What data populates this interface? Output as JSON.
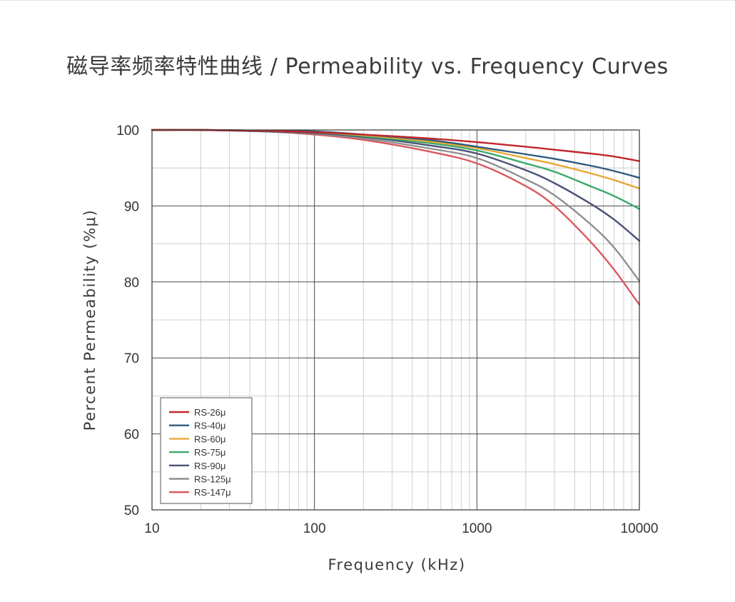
{
  "chart_data": {
    "type": "line",
    "title": "磁导率频率特性曲线 / Permeability vs. Frequency Curves",
    "xlabel": "Frequency (kHz)",
    "ylabel": "Percent Permeability (%μ)",
    "xscale": "log",
    "xlim": [
      10,
      10000
    ],
    "ylim": [
      50,
      100
    ],
    "x_ticks": [
      "10",
      "100",
      "1000",
      "10000"
    ],
    "y_ticks": [
      "50",
      "60",
      "70",
      "80",
      "90",
      "100"
    ],
    "grid": true,
    "legend_position": "bottom-left",
    "x": [
      10,
      20,
      50,
      100,
      200,
      500,
      1000,
      2000,
      3000,
      5000,
      7000,
      10000
    ],
    "series": [
      {
        "name": "RS-26μ",
        "color": "#c0282d",
        "values": [
          100,
          100,
          99.9,
          99.7,
          99.4,
          98.9,
          98.4,
          97.8,
          97.4,
          96.9,
          96.5,
          95.9
        ]
      },
      {
        "name": "RS-40μ",
        "color": "#2e5b7f",
        "values": [
          100,
          100,
          99.9,
          99.8,
          99.4,
          98.7,
          97.8,
          96.8,
          96.2,
          95.3,
          94.6,
          93.7
        ]
      },
      {
        "name": "RS-60μ",
        "color": "#e8a838",
        "values": [
          100,
          100,
          99.9,
          99.7,
          99.3,
          98.5,
          97.6,
          96.3,
          95.5,
          94.3,
          93.4,
          92.3
        ]
      },
      {
        "name": "RS-75μ",
        "color": "#3aaa6a",
        "values": [
          100,
          100,
          99.9,
          99.7,
          99.2,
          98.3,
          97.3,
          95.6,
          94.5,
          92.6,
          91.3,
          89.6
        ]
      },
      {
        "name": "RS-90μ",
        "color": "#4a5275",
        "values": [
          100,
          100,
          99.8,
          99.6,
          99.1,
          98.0,
          96.9,
          94.7,
          93.0,
          90.3,
          88.2,
          85.4
        ]
      },
      {
        "name": "RS-125μ",
        "color": "#8f8f8f",
        "values": [
          100,
          100,
          99.8,
          99.5,
          98.9,
          97.6,
          96.3,
          93.5,
          91.4,
          87.6,
          84.5,
          80.1
        ]
      },
      {
        "name": "RS-147μ",
        "color": "#d9585e",
        "values": [
          100,
          100,
          99.8,
          99.4,
          98.7,
          97.2,
          95.6,
          92.6,
          90.0,
          85.3,
          81.6,
          77.0
        ]
      }
    ]
  }
}
